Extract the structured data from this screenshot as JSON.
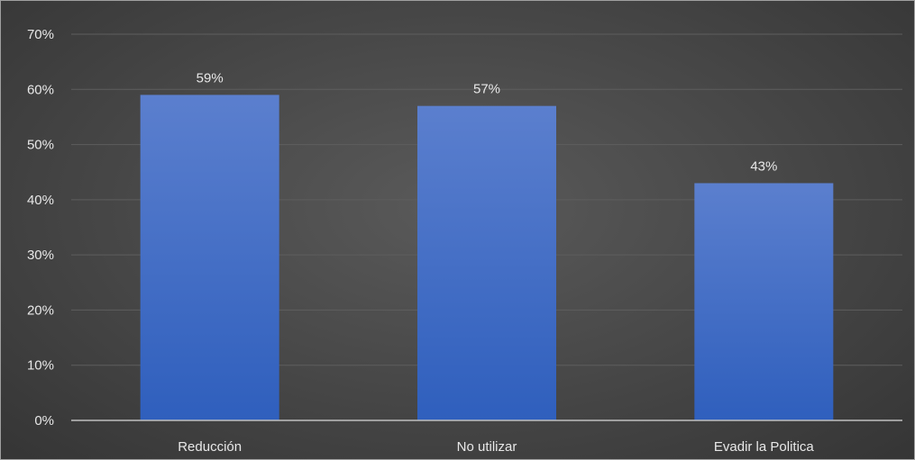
{
  "chart_data": {
    "type": "bar",
    "categories": [
      "Reducción",
      "No utilizar",
      "Evadir la Politica"
    ],
    "values": [
      59,
      57,
      43
    ],
    "data_labels": [
      "59%",
      "57%",
      "43%"
    ],
    "title": "",
    "xlabel": "",
    "ylabel": "",
    "ylim": [
      0,
      70
    ],
    "yticks": [
      0,
      10,
      20,
      30,
      40,
      50,
      60,
      70
    ],
    "ytick_labels": [
      "0%",
      "10%",
      "20%",
      "30%",
      "40%",
      "50%",
      "60%",
      "70%"
    ],
    "grid": true,
    "legend": "none",
    "colors": {
      "bar_top": "#5b7fce",
      "bar_bottom": "#2f5fbd",
      "background": "#454545",
      "gridline": "#5e5e5e",
      "axis": "#bfbfbf",
      "text": "#e8e8e8"
    }
  }
}
